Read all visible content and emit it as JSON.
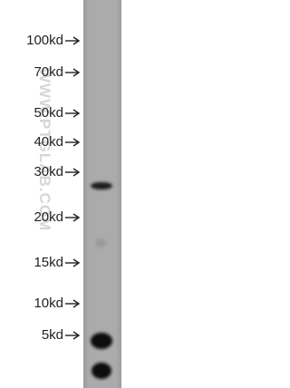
{
  "markers": [
    "100kd",
    "70kd",
    "50kd",
    "40kd",
    "30kd",
    "20kd",
    "15kd",
    "10kd",
    "5kd"
  ],
  "watermark": "WWW.PTGLAB.COM"
}
